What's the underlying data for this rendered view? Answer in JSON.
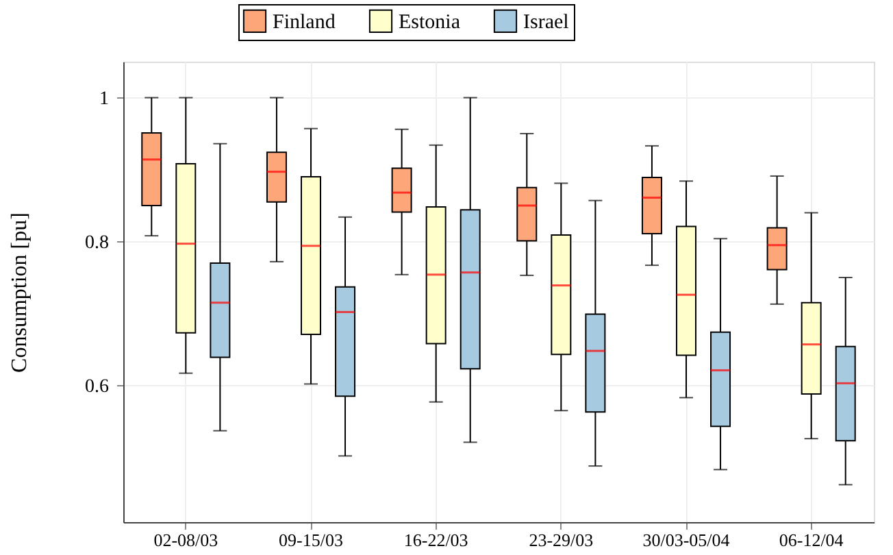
{
  "chart_data": {
    "type": "box",
    "ylabel": "Consumption [pu]",
    "categories": [
      "02-08/03",
      "09-15/03",
      "16-22/03",
      "23-29/03",
      "30/03-05/04",
      "06-12/04"
    ],
    "ylim": [
      0.41,
      1.05
    ],
    "yticks": [
      0.6,
      0.8,
      {
        "value": 1,
        "label": "1"
      }
    ],
    "grid": true,
    "legend": "top",
    "series": [
      {
        "name": "Finland",
        "color": "#fca67a",
        "boxes": [
          {
            "low": 0.808,
            "q1": 0.85,
            "median": 0.914,
            "q3": 0.951,
            "high": 1.0
          },
          {
            "low": 0.772,
            "q1": 0.855,
            "median": 0.897,
            "q3": 0.924,
            "high": 1.0
          },
          {
            "low": 0.754,
            "q1": 0.841,
            "median": 0.868,
            "q3": 0.902,
            "high": 0.956
          },
          {
            "low": 0.753,
            "q1": 0.801,
            "median": 0.85,
            "q3": 0.875,
            "high": 0.95
          },
          {
            "low": 0.767,
            "q1": 0.811,
            "median": 0.861,
            "q3": 0.889,
            "high": 0.933
          },
          {
            "low": 0.713,
            "q1": 0.761,
            "median": 0.795,
            "q3": 0.819,
            "high": 0.891
          }
        ]
      },
      {
        "name": "Estonia",
        "color": "#ffffcc",
        "boxes": [
          {
            "low": 0.617,
            "q1": 0.673,
            "median": 0.797,
            "q3": 0.908,
            "high": 1.0
          },
          {
            "low": 0.602,
            "q1": 0.671,
            "median": 0.794,
            "q3": 0.89,
            "high": 0.957
          },
          {
            "low": 0.577,
            "q1": 0.658,
            "median": 0.754,
            "q3": 0.848,
            "high": 0.934
          },
          {
            "low": 0.565,
            "q1": 0.643,
            "median": 0.739,
            "q3": 0.809,
            "high": 0.881
          },
          {
            "low": 0.583,
            "q1": 0.642,
            "median": 0.726,
            "q3": 0.821,
            "high": 0.884
          },
          {
            "low": 0.526,
            "q1": 0.588,
            "median": 0.657,
            "q3": 0.715,
            "high": 0.84
          }
        ]
      },
      {
        "name": "Israel",
        "color": "#a6cae0",
        "boxes": [
          {
            "low": 0.537,
            "q1": 0.639,
            "median": 0.715,
            "q3": 0.77,
            "high": 0.936
          },
          {
            "low": 0.502,
            "q1": 0.585,
            "median": 0.702,
            "q3": 0.737,
            "high": 0.834
          },
          {
            "low": 0.521,
            "q1": 0.623,
            "median": 0.757,
            "q3": 0.844,
            "high": 1.0
          },
          {
            "low": 0.488,
            "q1": 0.563,
            "median": 0.648,
            "q3": 0.699,
            "high": 0.857
          },
          {
            "low": 0.483,
            "q1": 0.543,
            "median": 0.621,
            "q3": 0.674,
            "high": 0.804
          },
          {
            "low": 0.462,
            "q1": 0.523,
            "median": 0.603,
            "q3": 0.654,
            "high": 0.75
          }
        ]
      }
    ]
  }
}
